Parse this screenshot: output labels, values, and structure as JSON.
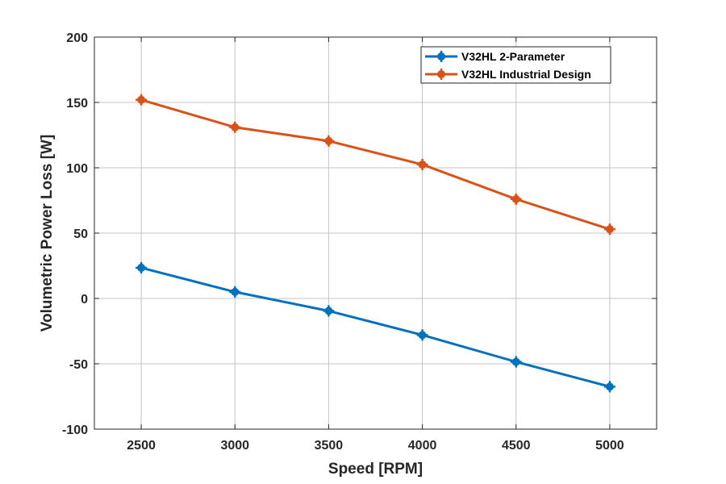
{
  "chart_data": {
    "type": "line",
    "title": "",
    "xlabel": "Speed [RPM]",
    "ylabel": "Volumetric Power Loss [W]",
    "x": [
      2500,
      3000,
      3500,
      4000,
      4500,
      5000
    ],
    "xlim": [
      2250,
      5250
    ],
    "ylim": [
      -100,
      200
    ],
    "xticks": [
      "2500",
      "3000",
      "3500",
      "4000",
      "4500",
      "5000"
    ],
    "yticks": [
      "-100",
      "-50",
      "0",
      "50",
      "100",
      "150",
      "200"
    ],
    "grid": true,
    "legend_position": "top-right",
    "series": [
      {
        "name": "V32HL 2-Parameter",
        "color": "#0072BD",
        "marker": "plus",
        "values": [
          23.5,
          5,
          -9.5,
          -28,
          -48.5,
          -67.5
        ]
      },
      {
        "name": "V32HL Industrial Design",
        "color": "#D95319",
        "marker": "plus",
        "values": [
          152,
          131,
          120.5,
          102.5,
          76,
          53
        ]
      }
    ]
  }
}
